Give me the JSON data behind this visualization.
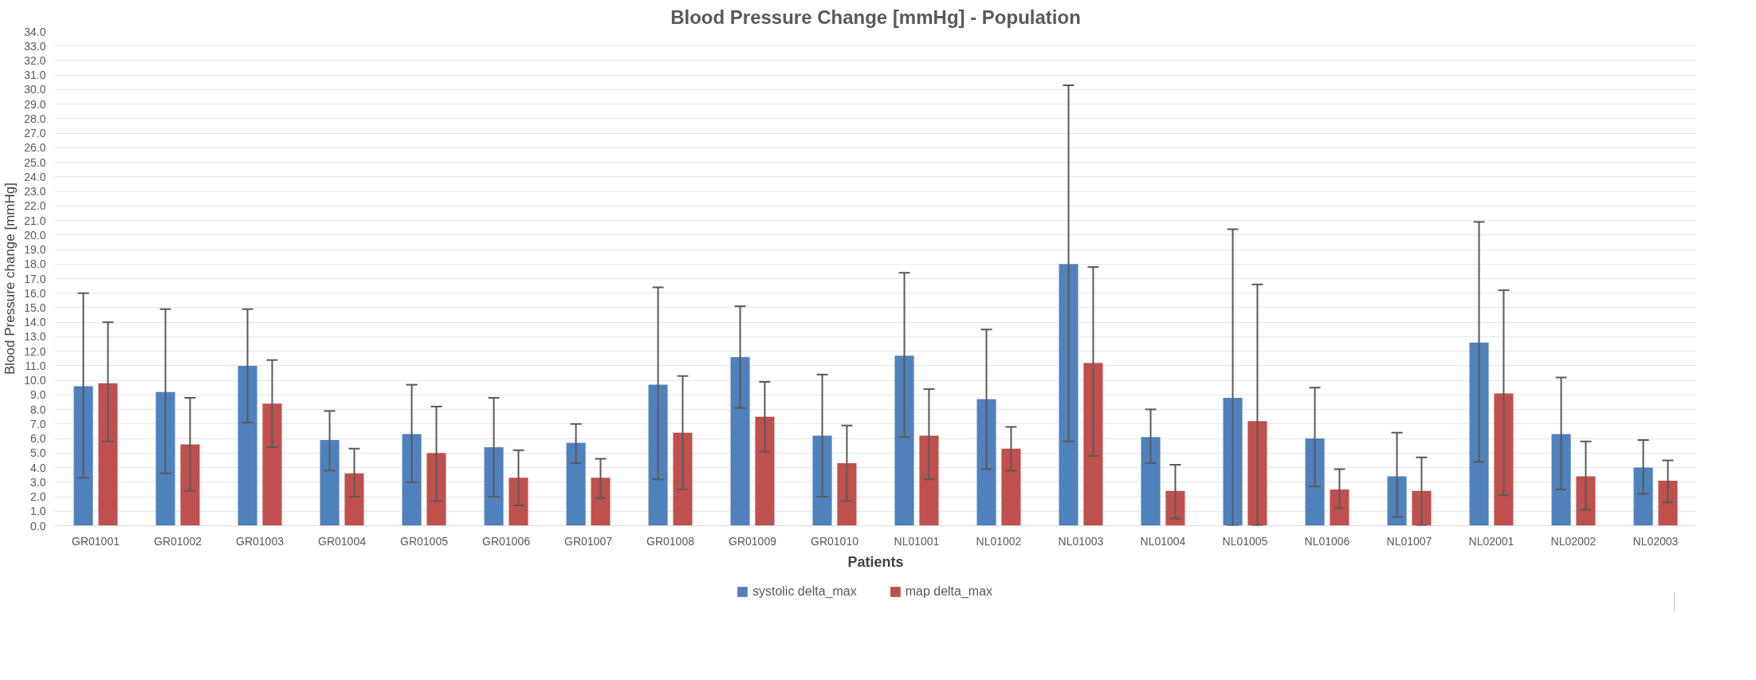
{
  "chart_data": {
    "type": "bar",
    "title": "Blood Pressure Change [mmHg] - Population",
    "xlabel": "Patients",
    "ylabel": "Blood Pressure change [mmHg]",
    "categories": [
      "GR01001",
      "GR01002",
      "GR01003",
      "GR01004",
      "GR01005",
      "GR01006",
      "GR01007",
      "GR01008",
      "GR01009",
      "GR01010",
      "NL01001",
      "NL01002",
      "NL01003",
      "NL01004",
      "NL01005",
      "NL01006",
      "NL01007",
      "NL02001",
      "NL02002",
      "NL02003"
    ],
    "series": [
      {
        "name": "systolic delta_max",
        "color": "#4f81bd",
        "values": [
          9.6,
          9.2,
          11.0,
          5.9,
          6.3,
          5.4,
          5.7,
          9.7,
          11.6,
          6.2,
          11.7,
          8.7,
          18.0,
          6.1,
          8.8,
          6.0,
          3.4,
          12.6,
          6.3,
          4.0
        ],
        "errors": [
          [
            3.3,
            16.0
          ],
          [
            3.6,
            14.9
          ],
          [
            7.1,
            14.9
          ],
          [
            3.8,
            7.9
          ],
          [
            3.0,
            9.7
          ],
          [
            2.0,
            8.8
          ],
          [
            4.3,
            7.0
          ],
          [
            3.2,
            16.4
          ],
          [
            8.1,
            15.1
          ],
          [
            2.0,
            10.4
          ],
          [
            6.1,
            17.4
          ],
          [
            3.9,
            13.5
          ],
          [
            5.8,
            30.3
          ],
          [
            4.3,
            8.0
          ],
          [
            0,
            20.4
          ],
          [
            2.7,
            9.5
          ],
          [
            0.6,
            6.4
          ],
          [
            4.4,
            20.9
          ],
          [
            2.5,
            10.2
          ],
          [
            2.2,
            5.9
          ]
        ]
      },
      {
        "name": "map delta_max",
        "color": "#c0504d",
        "values": [
          9.8,
          5.6,
          8.4,
          3.6,
          5.0,
          3.3,
          3.3,
          6.4,
          7.5,
          4.3,
          6.2,
          5.3,
          11.2,
          2.4,
          7.2,
          2.5,
          2.4,
          9.1,
          3.4,
          3.1
        ],
        "errors": [
          [
            5.8,
            14.0
          ],
          [
            2.4,
            8.8
          ],
          [
            5.4,
            11.4
          ],
          [
            2.0,
            5.3
          ],
          [
            1.7,
            8.2
          ],
          [
            1.4,
            5.2
          ],
          [
            1.9,
            4.6
          ],
          [
            2.5,
            10.3
          ],
          [
            5.1,
            9.9
          ],
          [
            1.7,
            6.9
          ],
          [
            3.2,
            9.4
          ],
          [
            3.8,
            6.8
          ],
          [
            4.8,
            17.8
          ],
          [
            0.5,
            4.2
          ],
          [
            0,
            16.6
          ],
          [
            1.2,
            3.9
          ],
          [
            0,
            4.7
          ],
          [
            2.1,
            16.2
          ],
          [
            1.1,
            5.8
          ],
          [
            1.6,
            4.5
          ]
        ]
      }
    ],
    "ylim": [
      0,
      34
    ],
    "yticks": [
      {
        "value": 0,
        "label": "0.0"
      },
      {
        "value": 1,
        "label": "1.0"
      },
      {
        "value": 2,
        "label": "2.0"
      },
      {
        "value": 3,
        "label": "3.0"
      },
      {
        "value": 4,
        "label": "4.0"
      },
      {
        "value": 5,
        "label": "5.0"
      },
      {
        "value": 6,
        "label": "6.0"
      },
      {
        "value": 7,
        "label": "7.0"
      },
      {
        "value": 8,
        "label": "8.0"
      },
      {
        "value": 9,
        "label": "9.0"
      },
      {
        "value": 10,
        "label": "10.0"
      },
      {
        "value": 11,
        "label": "11.0"
      },
      {
        "value": 12,
        "label": "12.0"
      },
      {
        "value": 13,
        "label": "13.0"
      },
      {
        "value": 14,
        "label": "14.0"
      },
      {
        "value": 15,
        "label": "15.0"
      },
      {
        "value": 16,
        "label": "16.0"
      },
      {
        "value": 17,
        "label": "17.0"
      },
      {
        "value": 18,
        "label": "18.0"
      },
      {
        "value": 19,
        "label": "19.0"
      },
      {
        "value": 20,
        "label": "20.0"
      },
      {
        "value": 21,
        "label": "21.0"
      },
      {
        "value": 22,
        "label": "22.0"
      },
      {
        "value": 23,
        "label": "23.0"
      },
      {
        "value": 24,
        "label": "24.0"
      },
      {
        "value": 25,
        "label": "25.0"
      },
      {
        "value": 26,
        "label": "26.0"
      },
      {
        "value": 27,
        "label": "27.0"
      },
      {
        "value": 28,
        "label": "28.0"
      },
      {
        "value": 29,
        "label": "29.0"
      },
      {
        "value": 30,
        "label": "30.0"
      },
      {
        "value": 31,
        "label": "31.0"
      },
      {
        "value": 32,
        "label": "32.0"
      },
      {
        "value": 33,
        "label": "33.0"
      },
      {
        "value": 34,
        "label": "34.0"
      }
    ],
    "grid": "y",
    "legend": "bottom"
  }
}
